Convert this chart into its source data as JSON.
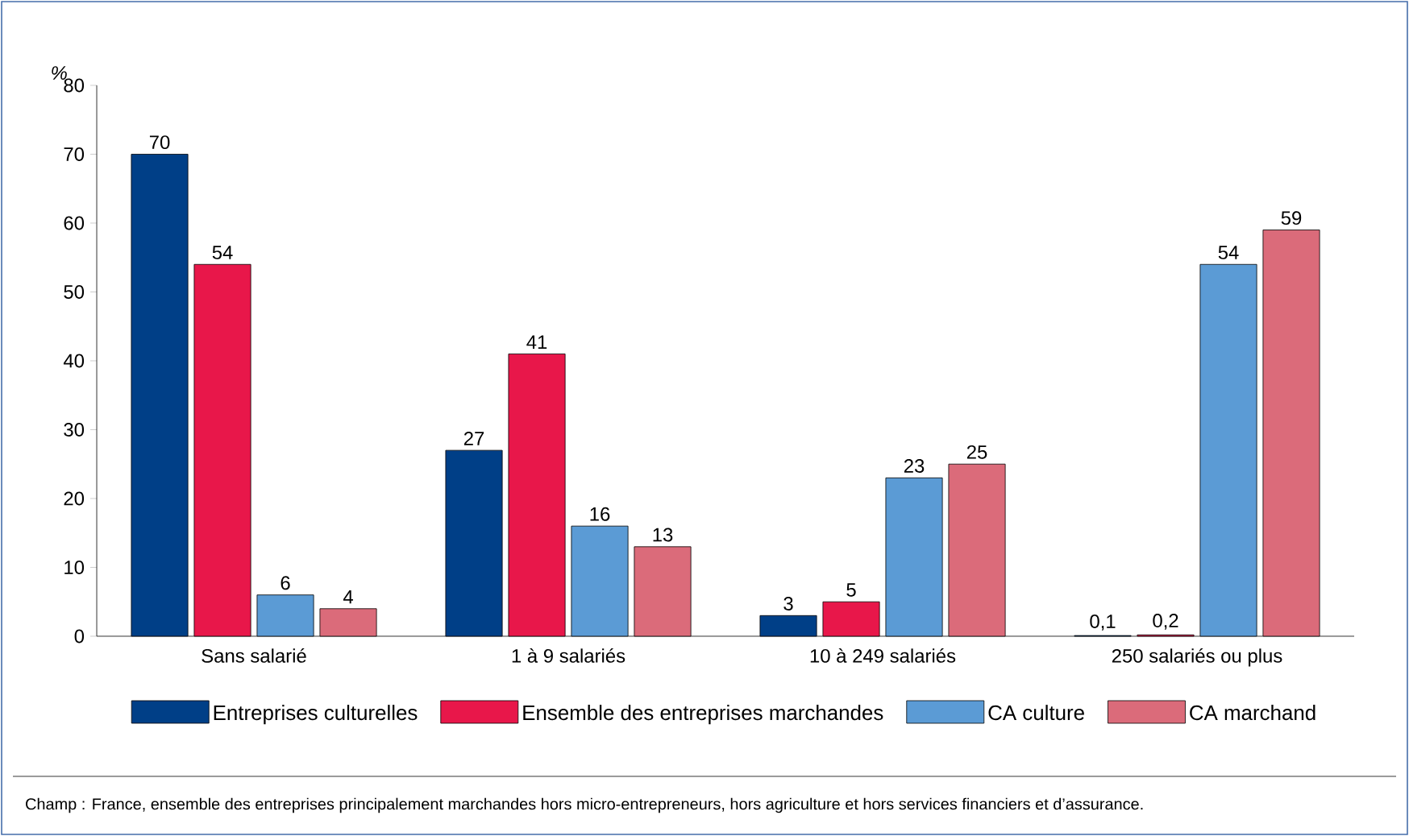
{
  "chart_data": {
    "type": "bar",
    "ylabel": "%",
    "categories": [
      "Sans salarié",
      "1 à 9 salariés",
      "10 à 249 salariés",
      "250 salariés ou plus"
    ],
    "series": [
      {
        "name": "Entreprises culturelles",
        "color": "#003f87",
        "values": [
          70,
          27,
          3,
          0.1
        ],
        "value_labels": [
          "70",
          "27",
          "3",
          "0,1"
        ]
      },
      {
        "name": "Ensemble des entreprises marchandes",
        "color": "#e8174a",
        "values": [
          54,
          41,
          5,
          0.2
        ],
        "value_labels": [
          "54",
          "41",
          "5",
          "0,2"
        ]
      },
      {
        "name": "CA culture",
        "color": "#5b9bd5",
        "values": [
          6,
          16,
          23,
          54
        ],
        "value_labels": [
          "6",
          "16",
          "23",
          "54"
        ]
      },
      {
        "name": "CA marchand",
        "color": "#db6b7a",
        "values": [
          4,
          13,
          25,
          59
        ],
        "value_labels": [
          "4",
          "13",
          "25",
          "59"
        ]
      }
    ],
    "ylim": [
      0,
      80
    ],
    "yticks": [
      0,
      10,
      20,
      30,
      40,
      50,
      60,
      70,
      80
    ],
    "legend": "bottom",
    "annotations": [
      "Champ : France, ensemble des entreprises principalement marchandes hors micro-entrepreneurs, hors agriculture et hors services financiers et d’assurance."
    ]
  }
}
